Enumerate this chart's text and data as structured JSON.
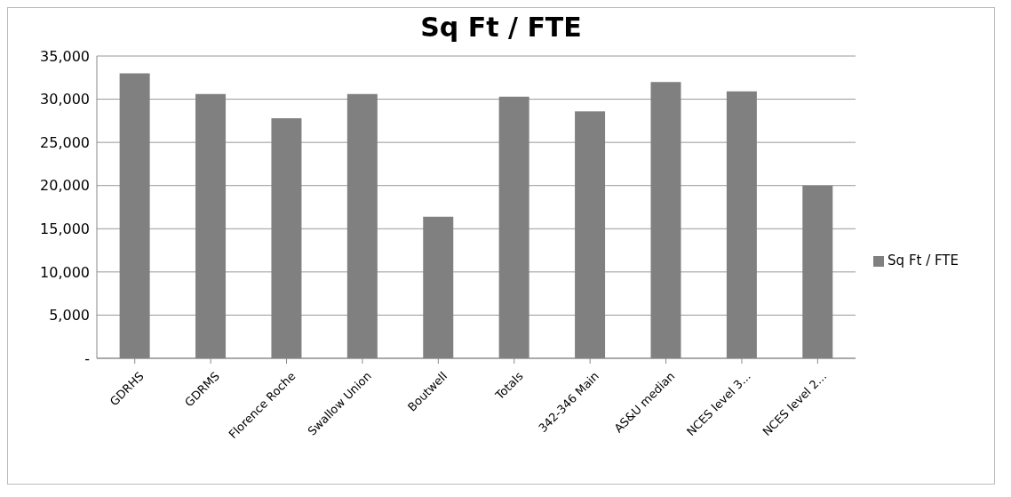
{
  "chart_data": {
    "type": "bar",
    "title": "Sq Ft / FTE",
    "categories": [
      "GDRHS",
      "GDRMS",
      "Florence Roche",
      "Swallow Union",
      "Boutwell",
      "Totals",
      "342-346 Main",
      "AS&U median",
      "NCES level 3...",
      "NCES  level 2..."
    ],
    "series": [
      {
        "name": "Sq Ft / FTE",
        "color": "#808080",
        "values": [
          33000,
          30600,
          27800,
          30600,
          16400,
          30300,
          28600,
          32000,
          30900,
          20000
        ]
      }
    ],
    "ylim": [
      0,
      35000
    ],
    "yticks": [
      {
        "value": 0,
        "label": "-"
      },
      {
        "value": 5000,
        "label": "5,000"
      },
      {
        "value": 10000,
        "label": "10,000"
      },
      {
        "value": 15000,
        "label": "15,000"
      },
      {
        "value": 20000,
        "label": "20,000"
      },
      {
        "value": 25000,
        "label": "25,000"
      },
      {
        "value": 30000,
        "label": "30,000"
      },
      {
        "value": 35000,
        "label": "35,000"
      }
    ],
    "grid": "y",
    "legend": "right"
  }
}
